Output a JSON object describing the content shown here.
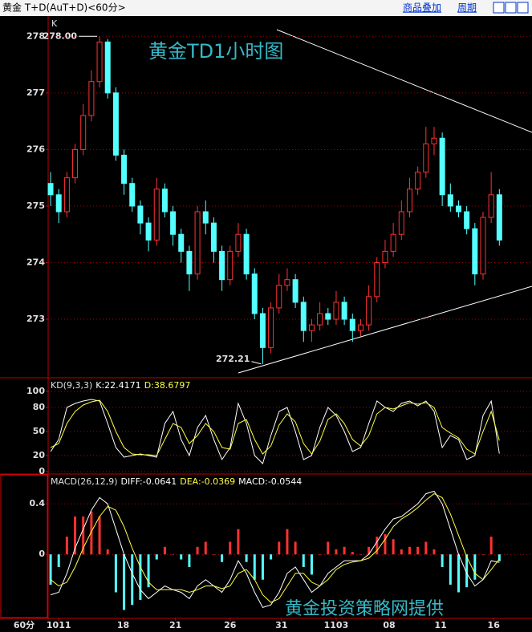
{
  "header": {
    "symbol": "黄金 T+D(AuT+D)<60分>",
    "overlay": "商品叠加",
    "period": "周期"
  },
  "watermark": "黄金投资策略网提供",
  "chart_data": [
    {
      "type": "candlestick",
      "title": "黄金TD1小时图",
      "label": "K",
      "up_color": "#ff3232",
      "down_color": "#54ffff",
      "xlim": [
        -0.3,
        59
      ],
      "ylim": [
        271.98,
        278.33
      ],
      "yticks": [
        273,
        274,
        275,
        276,
        277,
        278
      ],
      "grid": true,
      "annotations": {
        "max": "278.00",
        "min": "272.21"
      },
      "open": [
        275.4,
        275.2,
        274.9,
        275.5,
        276.0,
        276.6,
        277.2,
        277.9,
        277.0,
        275.9,
        275.4,
        275.0,
        274.7,
        274.4,
        275.3,
        274.9,
        274.5,
        274.2,
        273.8,
        274.9,
        274.7,
        274.2,
        273.7,
        274.2,
        274.5,
        273.8,
        273.1,
        272.5,
        273.2,
        273.6,
        273.7,
        273.3,
        272.8,
        272.9,
        273.1,
        273.0,
        273.3,
        273.0,
        272.8,
        272.9,
        273.4,
        274.0,
        274.2,
        274.5,
        274.9,
        275.3,
        275.6,
        276.1,
        276.2,
        275.2,
        275.0,
        274.9,
        274.6,
        273.8,
        274.8,
        275.2
      ],
      "high": [
        275.6,
        275.3,
        275.6,
        276.1,
        276.8,
        277.4,
        278.0,
        277.95,
        277.1,
        276.0,
        275.5,
        275.1,
        274.8,
        275.5,
        275.4,
        275.0,
        274.6,
        274.3,
        275.0,
        275.1,
        274.8,
        274.3,
        274.3,
        274.7,
        274.6,
        273.9,
        273.2,
        273.3,
        273.8,
        273.9,
        273.8,
        273.4,
        273.0,
        273.3,
        273.2,
        273.5,
        273.4,
        273.1,
        273.0,
        273.6,
        274.1,
        274.4,
        274.7,
        275.1,
        275.5,
        275.7,
        276.4,
        276.4,
        276.3,
        275.4,
        275.1,
        275.0,
        274.7,
        274.9,
        275.6,
        275.3
      ],
      "low": [
        275.0,
        274.7,
        274.8,
        275.4,
        275.9,
        276.5,
        277.1,
        276.9,
        275.8,
        275.2,
        274.9,
        274.5,
        274.2,
        274.3,
        274.8,
        274.3,
        274.0,
        273.5,
        273.7,
        274.5,
        274.0,
        273.5,
        273.6,
        274.1,
        273.7,
        273.0,
        272.21,
        272.4,
        273.1,
        273.5,
        273.2,
        272.6,
        272.6,
        272.8,
        272.9,
        272.9,
        272.9,
        272.6,
        272.7,
        272.8,
        273.3,
        273.9,
        274.1,
        274.4,
        274.8,
        275.2,
        275.5,
        275.9,
        275.0,
        274.9,
        274.8,
        274.5,
        273.6,
        273.7,
        274.7,
        274.3
      ],
      "close": [
        275.2,
        274.9,
        275.5,
        276.0,
        276.6,
        277.2,
        277.9,
        277.0,
        275.9,
        275.4,
        275.0,
        274.7,
        274.4,
        275.3,
        274.9,
        274.5,
        274.2,
        273.8,
        274.9,
        274.7,
        274.2,
        273.7,
        274.2,
        274.5,
        273.8,
        273.1,
        272.5,
        273.2,
        273.6,
        273.7,
        273.3,
        272.8,
        272.9,
        273.1,
        273.0,
        273.3,
        273.0,
        272.8,
        272.9,
        273.4,
        274.0,
        274.2,
        274.5,
        274.9,
        275.3,
        275.6,
        276.1,
        276.2,
        275.2,
        275.0,
        274.9,
        274.6,
        273.8,
        274.8,
        275.2,
        274.4
      ]
    },
    {
      "type": "line",
      "indicator": "KD(9,3,3)",
      "xlim": [
        -0.3,
        59
      ],
      "ylim": [
        -2,
        116
      ],
      "yticks": [
        0,
        20,
        50,
        80,
        100
      ],
      "grid": true,
      "series": [
        {
          "name": "K:22.4171",
          "color": "#ffffff",
          "values": [
            25,
            40,
            80,
            85,
            88,
            90,
            88,
            60,
            30,
            18,
            20,
            22,
            20,
            18,
            60,
            75,
            40,
            20,
            55,
            70,
            40,
            15,
            30,
            85,
            60,
            20,
            10,
            45,
            75,
            80,
            50,
            15,
            20,
            55,
            80,
            70,
            50,
            25,
            30,
            60,
            88,
            80,
            75,
            85,
            88,
            82,
            88,
            75,
            30,
            45,
            40,
            15,
            20,
            70,
            88,
            22.4171
          ]
        },
        {
          "name": "D:38.6797",
          "color": "#ffff44",
          "values": [
            30,
            35,
            60,
            75,
            83,
            87,
            89,
            75,
            50,
            30,
            22,
            21,
            21,
            20,
            40,
            60,
            55,
            35,
            45,
            60,
            50,
            30,
            28,
            60,
            65,
            40,
            22,
            32,
            58,
            72,
            62,
            35,
            22,
            38,
            65,
            72,
            60,
            40,
            32,
            45,
            72,
            80,
            78,
            82,
            86,
            84,
            86,
            80,
            55,
            48,
            42,
            28,
            22,
            50,
            75,
            38.6797
          ]
        }
      ]
    },
    {
      "type": "macd",
      "indicator": "MACD(26,12,9)",
      "xlabel": "60分",
      "up_color": "#ff3232",
      "down_color": "#54ffff",
      "xlim": [
        -0.3,
        59
      ],
      "ylim": [
        -0.5,
        0.63
      ],
      "yticks": [
        0,
        0.4
      ],
      "grid": true,
      "xticks": [
        {
          "value": 1,
          "label": "1011"
        },
        {
          "value": 8.9,
          "label": "18"
        },
        {
          "value": 15.3,
          "label": "21"
        },
        {
          "value": 22,
          "label": "26"
        },
        {
          "value": 28.3,
          "label": "31"
        },
        {
          "value": 35,
          "label": "1103"
        },
        {
          "value": 41.5,
          "label": "08"
        },
        {
          "value": 47.8,
          "label": "11"
        },
        {
          "value": 54.3,
          "label": "16"
        }
      ],
      "series": [
        {
          "name": "DIFF:-0.0641",
          "color": "#ffffff",
          "style": "line",
          "values": [
            -0.32,
            -0.3,
            -0.15,
            0.05,
            0.2,
            0.35,
            0.45,
            0.4,
            0.2,
            0.0,
            -0.15,
            -0.28,
            -0.35,
            -0.3,
            -0.25,
            -0.28,
            -0.3,
            -0.35,
            -0.25,
            -0.2,
            -0.25,
            -0.3,
            -0.2,
            -0.05,
            -0.15,
            -0.3,
            -0.42,
            -0.4,
            -0.3,
            -0.15,
            -0.1,
            -0.2,
            -0.3,
            -0.25,
            -0.15,
            -0.1,
            -0.05,
            -0.05,
            -0.05,
            0.0,
            0.1,
            0.2,
            0.28,
            0.3,
            0.35,
            0.4,
            0.48,
            0.5,
            0.4,
            0.2,
            0.0,
            -0.15,
            -0.25,
            -0.2,
            -0.05,
            -0.0641
          ]
        },
        {
          "name": "DEA:-0.0369",
          "color": "#ffff44",
          "style": "line",
          "values": [
            -0.2,
            -0.25,
            -0.22,
            -0.1,
            0.05,
            0.18,
            0.3,
            0.38,
            0.35,
            0.22,
            0.05,
            -0.1,
            -0.22,
            -0.28,
            -0.28,
            -0.28,
            -0.28,
            -0.3,
            -0.28,
            -0.25,
            -0.25,
            -0.27,
            -0.25,
            -0.15,
            -0.12,
            -0.2,
            -0.32,
            -0.38,
            -0.35,
            -0.25,
            -0.15,
            -0.15,
            -0.22,
            -0.25,
            -0.2,
            -0.12,
            -0.08,
            -0.06,
            -0.05,
            -0.03,
            0.03,
            0.12,
            0.22,
            0.28,
            0.32,
            0.37,
            0.43,
            0.48,
            0.45,
            0.32,
            0.15,
            -0.02,
            -0.15,
            -0.2,
            -0.12,
            -0.0369
          ]
        },
        {
          "name": "MACD:-0.0544",
          "color": "#ffffff",
          "style": "bar",
          "values": [
            -0.24,
            -0.1,
            0.14,
            0.3,
            0.3,
            0.34,
            0.3,
            0.04,
            -0.3,
            -0.44,
            -0.4,
            -0.36,
            -0.26,
            -0.04,
            0.06,
            0.0,
            -0.04,
            -0.1,
            0.06,
            0.1,
            0.0,
            -0.06,
            0.1,
            0.2,
            -0.06,
            -0.2,
            -0.2,
            -0.04,
            0.1,
            0.2,
            0.1,
            -0.1,
            -0.16,
            0.0,
            0.1,
            0.04,
            0.06,
            0.02,
            0.0,
            0.06,
            0.14,
            0.16,
            0.12,
            0.04,
            0.06,
            0.06,
            0.1,
            0.04,
            -0.1,
            -0.24,
            -0.3,
            -0.26,
            -0.2,
            0.0,
            0.14,
            -0.0544
          ]
        }
      ]
    }
  ]
}
